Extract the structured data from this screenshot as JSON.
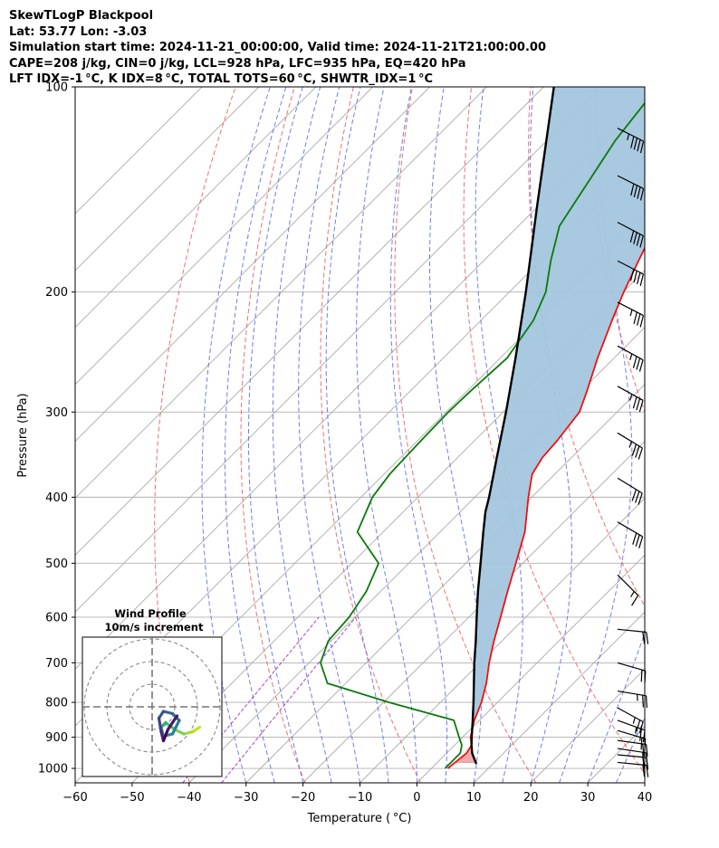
{
  "header": {
    "line1": "SkewTLogP Blackpool",
    "line2": "Lat: 53.77   Lon: -3.03",
    "line3": "Simulation start time: 2024-11-21_00:00:00, Valid time: 2024-11-21T21:00:00.00",
    "line4": "CAPE=208 j/kg, CIN=0 j/kg, LCL=928 hPa, LFC=935 hPa, EQ=420 hPa",
    "line5": "LFT IDX=-1 °C, K IDX=8 °C, TOTAL TOTS=60 °C, SHWTR_IDX=1 °C"
  },
  "chart_data": {
    "type": "line",
    "subtype": "skew-t log-p",
    "xlabel": "Temperature ( °C)",
    "ylabel": "Pressure (hPa)",
    "xlim": [
      -60,
      40
    ],
    "ylim": [
      1050,
      100
    ],
    "y_scale": "log",
    "x_ticks": [
      "−60",
      "−50",
      "−40",
      "−30",
      "−20",
      "−10",
      "0",
      "10",
      "20",
      "30",
      "40"
    ],
    "y_ticks": [
      "100",
      "200",
      "300",
      "400",
      "500",
      "600",
      "700",
      "800",
      "900",
      "1000"
    ],
    "grid": true,
    "colors": {
      "temperature": "#ee1111",
      "dewpoint": "#0a7a0a",
      "parcel": "#000000",
      "cape_fill": "#f4a6a6",
      "upper_fill": "#a3c6de",
      "isotherms": "#aaaaaa",
      "dry_adiabats": "#ee5555",
      "moist_adiabats": "#5566ee",
      "mixing_ratio": "#aa44cc"
    },
    "series": [
      {
        "role": "temperature",
        "p": [
          1000,
          950,
          925,
          900,
          850,
          800,
          750,
          700,
          650,
          600,
          550,
          500,
          450,
          400,
          370,
          350,
          330,
          300,
          280,
          250,
          220,
          200,
          180,
          160,
          140,
          120,
          100
        ],
        "values": [
          2.9,
          3.5,
          3.0,
          1.4,
          -0.9,
          -2.8,
          -5.3,
          -8.4,
          -11.4,
          -14.4,
          -17.7,
          -21.2,
          -25.1,
          -30.6,
          -34.0,
          -35.1,
          -35.5,
          -36.6,
          -38.9,
          -42.9,
          -47.0,
          -49.9,
          -52.8,
          -55.9,
          -59.2,
          -63.3,
          -68.0
        ]
      },
      {
        "role": "dewpoint",
        "p": [
          1000,
          950,
          925,
          900,
          850,
          800,
          750,
          700,
          650,
          600,
          550,
          500,
          450,
          400,
          370,
          350,
          330,
          300,
          280,
          250,
          220,
          200,
          180,
          160,
          140,
          120,
          100
        ],
        "values": [
          2.4,
          2.4,
          1.3,
          -0.6,
          -4.5,
          -19.0,
          -33.2,
          -38.0,
          -40.5,
          -41.0,
          -42.5,
          -45.3,
          -54.5,
          -58.0,
          -59.0,
          -59.2,
          -59.4,
          -59.6,
          -59.4,
          -58.8,
          -60.8,
          -63.6,
          -68.2,
          -72.8,
          -75.2,
          -78.0,
          -80.0
        ]
      },
      {
        "role": "parcel",
        "p": [
          985,
          950,
          925,
          900,
          850,
          800,
          750,
          700,
          650,
          600,
          550,
          500,
          450,
          420,
          400,
          350,
          300,
          250,
          200,
          150,
          100
        ],
        "values": [
          7.1,
          4.5,
          3.0,
          1.6,
          -1.2,
          -4.2,
          -7.5,
          -11.0,
          -14.6,
          -18.6,
          -22.9,
          -27.4,
          -32.4,
          -35.6,
          -37.5,
          -43.1,
          -49.5,
          -57.3,
          -67.1,
          -80.1,
          -98.2
        ]
      }
    ],
    "wind_barbs": [
      {
        "p": 115,
        "u": -40,
        "v": 20
      },
      {
        "p": 135,
        "u": -38,
        "v": 19
      },
      {
        "p": 158,
        "u": -36,
        "v": 19
      },
      {
        "p": 180,
        "u": -35,
        "v": 18
      },
      {
        "p": 207,
        "u": -33,
        "v": 17
      },
      {
        "p": 240,
        "u": -31,
        "v": 17
      },
      {
        "p": 275,
        "u": -29,
        "v": 16
      },
      {
        "p": 322,
        "u": -28,
        "v": 17
      },
      {
        "p": 375,
        "u": -26,
        "v": 16
      },
      {
        "p": 435,
        "u": -24,
        "v": 14
      },
      {
        "p": 520,
        "u": -12,
        "v": 12
      },
      {
        "p": 625,
        "u": -20,
        "v": 2
      },
      {
        "p": 700,
        "u": -21,
        "v": 6
      },
      {
        "p": 770,
        "u": -24,
        "v": 4
      },
      {
        "p": 815,
        "u": -22,
        "v": 12
      },
      {
        "p": 850,
        "u": -22,
        "v": 8
      },
      {
        "p": 880,
        "u": -17,
        "v": 5
      },
      {
        "p": 910,
        "u": -22,
        "v": 3
      },
      {
        "p": 935,
        "u": -20,
        "v": 3
      },
      {
        "p": 955,
        "u": -21,
        "v": 2
      },
      {
        "p": 980,
        "u": -21,
        "v": 2
      }
    ],
    "hodograph": {
      "title_line1": "Wind Profile",
      "title_line2": "10m/s increment",
      "ring_increment_ms": 10,
      "rings": 3,
      "u": [
        21,
        18,
        14,
        10,
        6,
        4,
        5,
        9,
        12,
        9,
        5,
        3,
        4,
        5,
        7,
        11
      ],
      "v": [
        -9,
        -11,
        -12,
        -10,
        -7,
        -9,
        -13,
        -12,
        -6,
        -3,
        -2,
        -5,
        -11,
        -15,
        -10,
        -4
      ]
    }
  }
}
